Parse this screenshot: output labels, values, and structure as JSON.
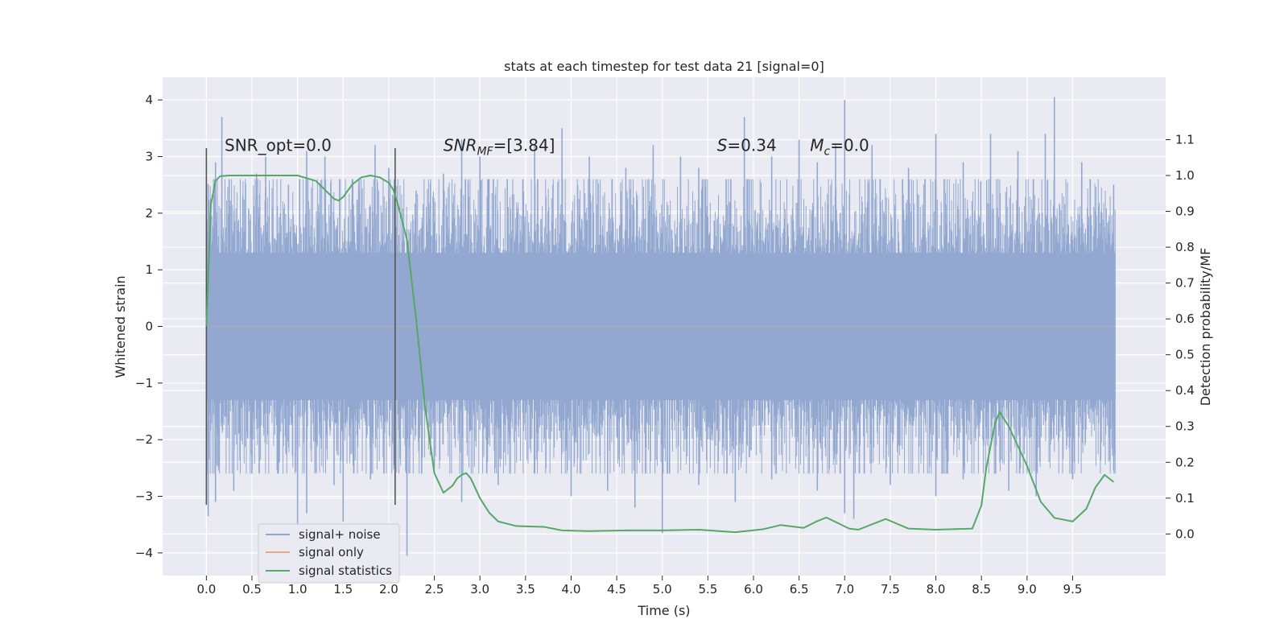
{
  "chart_data": {
    "type": "line",
    "title": "stats at each timestep for test data 21 [signal=0]",
    "xlabel": "Time (s)",
    "ylabel": "Whitened strain",
    "y2label": "Detection probability/MF",
    "xlim": [
      -0.48,
      10.52
    ],
    "ylim": [
      -4.4,
      4.4
    ],
    "y2lim": [
      -0.116,
      1.274
    ],
    "x_ticks": [
      0.0,
      0.5,
      1.0,
      1.5,
      2.0,
      2.5,
      3.0,
      3.5,
      4.0,
      4.5,
      5.0,
      5.5,
      6.0,
      6.5,
      7.0,
      7.5,
      8.0,
      8.5,
      9.0,
      9.5
    ],
    "x_tick_labels": [
      "0.0",
      "0.5",
      "1.0",
      "1.5",
      "2.0",
      "2.5",
      "3.0",
      "3.5",
      "4.0",
      "4.5",
      "5.0",
      "5.5",
      "6.0",
      "6.5",
      "7.0",
      "7.5",
      "8.0",
      "8.5",
      "9.0",
      "9.5"
    ],
    "y_ticks": [
      -4,
      -3,
      -2,
      -1,
      0,
      1,
      2,
      3,
      4
    ],
    "y_tick_labels": [
      "−4",
      "−3",
      "−2",
      "−1",
      "0",
      "1",
      "2",
      "3",
      "4"
    ],
    "y2_ticks": [
      0.0,
      0.1,
      0.2,
      0.3,
      0.4,
      0.5,
      0.6,
      0.7,
      0.8,
      0.9,
      1.0,
      1.1
    ],
    "y2_tick_labels": [
      "0.0",
      "0.1",
      "0.2",
      "0.3",
      "0.4",
      "0.5",
      "0.6",
      "0.7",
      "0.8",
      "0.9",
      "1.0",
      "1.1"
    ],
    "grid": true,
    "legend_placement": "lower-left",
    "annotations": [
      {
        "name": "snr-opt",
        "text": "SNR_opt=0.0",
        "x": 0.2,
        "y": 3.2
      },
      {
        "name": "snr-mf",
        "text": "SNR",
        "sub": "MF",
        "tail": "=[3.84]",
        "x": 2.6,
        "y": 3.2
      },
      {
        "name": "s-value",
        "text": "S",
        "tail": "=0.34",
        "x": 5.6,
        "y": 3.2
      },
      {
        "name": "mc-value",
        "text": "M",
        "sub": "c",
        "tail": "=0.0",
        "x": 6.62,
        "y": 3.2
      }
    ],
    "vlines": [
      {
        "x": 0.0,
        "ymin": -3.15,
        "ymax": 3.15
      },
      {
        "x": 2.07,
        "ymin": -3.15,
        "ymax": 3.15
      }
    ],
    "noise_band": {
      "x_start": 0.0,
      "x_end": 9.97,
      "core_low": -1.3,
      "core_high": 1.3
    },
    "series": [
      {
        "name": "signal+ noise",
        "axis": "left",
        "color": "#92a8d1",
        "note_shape": "dense whitened-noise trace, peaks listed as [x, y]",
        "upper_peaks": [
          [
            0.02,
            2.5
          ],
          [
            0.1,
            2.9
          ],
          [
            0.17,
            3.7
          ],
          [
            0.25,
            2.6
          ],
          [
            0.4,
            2.3
          ],
          [
            0.55,
            2.7
          ],
          [
            0.65,
            3.0
          ],
          [
            0.9,
            2.5
          ],
          [
            1.1,
            3.1
          ],
          [
            1.3,
            3.0
          ],
          [
            1.6,
            2.6
          ],
          [
            1.85,
            3.2
          ],
          [
            2.0,
            2.8
          ],
          [
            2.3,
            2.4
          ],
          [
            2.6,
            2.7
          ],
          [
            2.8,
            3.3
          ],
          [
            3.0,
            3.0
          ],
          [
            3.3,
            2.6
          ],
          [
            3.6,
            3.2
          ],
          [
            3.9,
            3.5
          ],
          [
            4.2,
            3.0
          ],
          [
            4.6,
            2.8
          ],
          [
            4.9,
            3.2
          ],
          [
            5.2,
            3.0
          ],
          [
            5.4,
            2.8
          ],
          [
            5.7,
            2.6
          ],
          [
            5.9,
            3.7
          ],
          [
            6.2,
            3.0
          ],
          [
            6.5,
            3.3
          ],
          [
            6.7,
            2.9
          ],
          [
            6.9,
            3.2
          ],
          [
            7.0,
            4.0
          ],
          [
            7.3,
            3.2
          ],
          [
            7.7,
            2.8
          ],
          [
            8.0,
            3.4
          ],
          [
            8.3,
            2.9
          ],
          [
            8.6,
            3.4
          ],
          [
            8.9,
            3.1
          ],
          [
            9.2,
            3.4
          ],
          [
            9.3,
            4.05
          ],
          [
            9.6,
            2.9
          ],
          [
            9.95,
            2.5
          ]
        ],
        "lower_peaks": [
          [
            0.02,
            -3.35
          ],
          [
            0.1,
            -3.1
          ],
          [
            0.3,
            -2.9
          ],
          [
            0.5,
            -2.6
          ],
          [
            0.8,
            -2.4
          ],
          [
            1.0,
            -3.6
          ],
          [
            1.1,
            -3.3
          ],
          [
            1.4,
            -2.8
          ],
          [
            1.5,
            -3.45
          ],
          [
            1.8,
            -2.7
          ],
          [
            2.2,
            -4.05
          ],
          [
            2.5,
            -2.5
          ],
          [
            2.8,
            -3.1
          ],
          [
            3.2,
            -2.8
          ],
          [
            3.6,
            -2.6
          ],
          [
            4.0,
            -3.0
          ],
          [
            4.4,
            -2.9
          ],
          [
            4.7,
            -3.2
          ],
          [
            5.0,
            -3.65
          ],
          [
            5.4,
            -2.8
          ],
          [
            5.8,
            -3.1
          ],
          [
            6.2,
            -2.7
          ],
          [
            6.7,
            -2.9
          ],
          [
            7.0,
            -3.3
          ],
          [
            7.1,
            -3.4
          ],
          [
            7.5,
            -2.8
          ],
          [
            8.0,
            -3.0
          ],
          [
            8.3,
            -2.7
          ],
          [
            8.8,
            -2.9
          ],
          [
            9.1,
            -3.0
          ],
          [
            9.5,
            -2.7
          ],
          [
            9.95,
            -2.2
          ]
        ]
      },
      {
        "name": "signal only",
        "axis": "left",
        "color": "#e8a98a",
        "x": [
          0.0,
          9.97
        ],
        "y": [
          0.0,
          0.0
        ]
      },
      {
        "name": "signal statistics",
        "axis": "right",
        "color": "#55a868",
        "x": [
          0.0,
          0.05,
          0.1,
          0.15,
          0.25,
          0.5,
          0.8,
          1.0,
          1.2,
          1.3,
          1.4,
          1.45,
          1.5,
          1.6,
          1.7,
          1.8,
          1.9,
          2.0,
          2.05,
          2.1,
          2.2,
          2.3,
          2.4,
          2.5,
          2.6,
          2.7,
          2.75,
          2.8,
          2.85,
          2.9,
          3.0,
          3.1,
          3.2,
          3.4,
          3.7,
          3.9,
          4.2,
          4.6,
          5.0,
          5.4,
          5.8,
          6.1,
          6.3,
          6.55,
          6.7,
          6.8,
          7.05,
          7.15,
          7.45,
          7.7,
          8.0,
          8.4,
          8.5,
          8.55,
          8.65,
          8.7,
          8.8,
          9.0,
          9.15,
          9.3,
          9.5,
          9.65,
          9.75,
          9.85,
          9.95
        ],
        "y": [
          0.58,
          0.92,
          0.985,
          0.998,
          1.0,
          1.0,
          1.0,
          1.0,
          0.985,
          0.96,
          0.935,
          0.93,
          0.94,
          0.975,
          0.995,
          1.0,
          0.995,
          0.98,
          0.96,
          0.92,
          0.82,
          0.6,
          0.35,
          0.17,
          0.115,
          0.135,
          0.155,
          0.165,
          0.17,
          0.155,
          0.1,
          0.06,
          0.035,
          0.022,
          0.02,
          0.01,
          0.008,
          0.01,
          0.01,
          0.012,
          0.005,
          0.013,
          0.025,
          0.017,
          0.036,
          0.046,
          0.015,
          0.012,
          0.042,
          0.015,
          0.012,
          0.015,
          0.08,
          0.18,
          0.31,
          0.34,
          0.3,
          0.19,
          0.09,
          0.045,
          0.035,
          0.07,
          0.13,
          0.165,
          0.145
        ]
      }
    ]
  }
}
